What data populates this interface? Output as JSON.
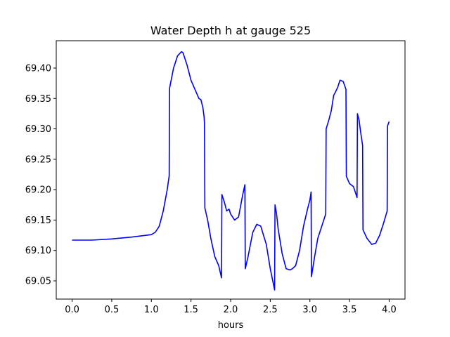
{
  "chart_data": {
    "type": "line",
    "title": "Water Depth h at gauge 525",
    "xlabel": "hours",
    "ylabel": "",
    "xlim": [
      -0.2,
      4.2
    ],
    "ylim": [
      69.02,
      69.445
    ],
    "x_ticks": [
      0.0,
      0.5,
      1.0,
      1.5,
      2.0,
      2.5,
      3.0,
      3.5,
      4.0
    ],
    "x_tick_labels": [
      "0.0",
      "0.5",
      "1.0",
      "1.5",
      "2.0",
      "2.5",
      "3.0",
      "3.5",
      "4.0"
    ],
    "y_ticks": [
      69.05,
      69.1,
      69.15,
      69.2,
      69.25,
      69.3,
      69.35,
      69.4
    ],
    "y_tick_labels": [
      "69.05",
      "69.10",
      "69.15",
      "69.20",
      "69.25",
      "69.30",
      "69.35",
      "69.40"
    ],
    "grid": false,
    "series": [
      {
        "color": "#0000ff",
        "points": [
          [
            0.0,
            69.117
          ],
          [
            0.25,
            69.117
          ],
          [
            0.5,
            69.119
          ],
          [
            0.75,
            69.122
          ],
          [
            1.0,
            69.126
          ],
          [
            1.05,
            69.13
          ],
          [
            1.1,
            69.14
          ],
          [
            1.15,
            69.165
          ],
          [
            1.2,
            69.2
          ],
          [
            1.225,
            69.223
          ],
          [
            1.23,
            69.367
          ],
          [
            1.28,
            69.4
          ],
          [
            1.33,
            69.42
          ],
          [
            1.38,
            69.427
          ],
          [
            1.4,
            69.425
          ],
          [
            1.45,
            69.405
          ],
          [
            1.5,
            69.38
          ],
          [
            1.55,
            69.365
          ],
          [
            1.6,
            69.35
          ],
          [
            1.625,
            69.348
          ],
          [
            1.65,
            69.335
          ],
          [
            1.665,
            69.32
          ],
          [
            1.67,
            69.31
          ],
          [
            1.675,
            69.17
          ],
          [
            1.71,
            69.15
          ],
          [
            1.75,
            69.12
          ],
          [
            1.8,
            69.09
          ],
          [
            1.85,
            69.075
          ],
          [
            1.885,
            69.055
          ],
          [
            1.89,
            69.192
          ],
          [
            1.92,
            69.18
          ],
          [
            1.95,
            69.165
          ],
          [
            1.98,
            69.168
          ],
          [
            2.0,
            69.16
          ],
          [
            2.05,
            69.15
          ],
          [
            2.1,
            69.155
          ],
          [
            2.15,
            69.19
          ],
          [
            2.18,
            69.208
          ],
          [
            2.185,
            69.07
          ],
          [
            2.22,
            69.09
          ],
          [
            2.28,
            69.13
          ],
          [
            2.33,
            69.143
          ],
          [
            2.38,
            69.14
          ],
          [
            2.45,
            69.11
          ],
          [
            2.5,
            69.07
          ],
          [
            2.555,
            69.035
          ],
          [
            2.56,
            69.175
          ],
          [
            2.58,
            69.16
          ],
          [
            2.6,
            69.135
          ],
          [
            2.65,
            69.095
          ],
          [
            2.7,
            69.07
          ],
          [
            2.75,
            69.068
          ],
          [
            2.78,
            69.07
          ],
          [
            2.82,
            69.075
          ],
          [
            2.87,
            69.1
          ],
          [
            2.92,
            69.14
          ],
          [
            2.97,
            69.168
          ],
          [
            3.0,
            69.183
          ],
          [
            3.015,
            69.196
          ],
          [
            3.02,
            69.057
          ],
          [
            3.06,
            69.09
          ],
          [
            3.1,
            69.12
          ],
          [
            3.15,
            69.14
          ],
          [
            3.2,
            69.16
          ],
          [
            3.205,
            69.3
          ],
          [
            3.24,
            69.315
          ],
          [
            3.27,
            69.33
          ],
          [
            3.3,
            69.355
          ],
          [
            3.32,
            69.36
          ],
          [
            3.35,
            69.368
          ],
          [
            3.38,
            69.38
          ],
          [
            3.42,
            69.378
          ],
          [
            3.455,
            69.365
          ],
          [
            3.46,
            69.222
          ],
          [
            3.5,
            69.21
          ],
          [
            3.55,
            69.205
          ],
          [
            3.595,
            69.187
          ],
          [
            3.6,
            69.325
          ],
          [
            3.62,
            69.315
          ],
          [
            3.64,
            69.295
          ],
          [
            3.665,
            69.273
          ],
          [
            3.67,
            69.134
          ],
          [
            3.72,
            69.12
          ],
          [
            3.78,
            69.11
          ],
          [
            3.83,
            69.112
          ],
          [
            3.88,
            69.125
          ],
          [
            3.93,
            69.145
          ],
          [
            3.975,
            69.165
          ],
          [
            3.98,
            69.305
          ],
          [
            4.0,
            69.312
          ]
        ]
      }
    ]
  }
}
